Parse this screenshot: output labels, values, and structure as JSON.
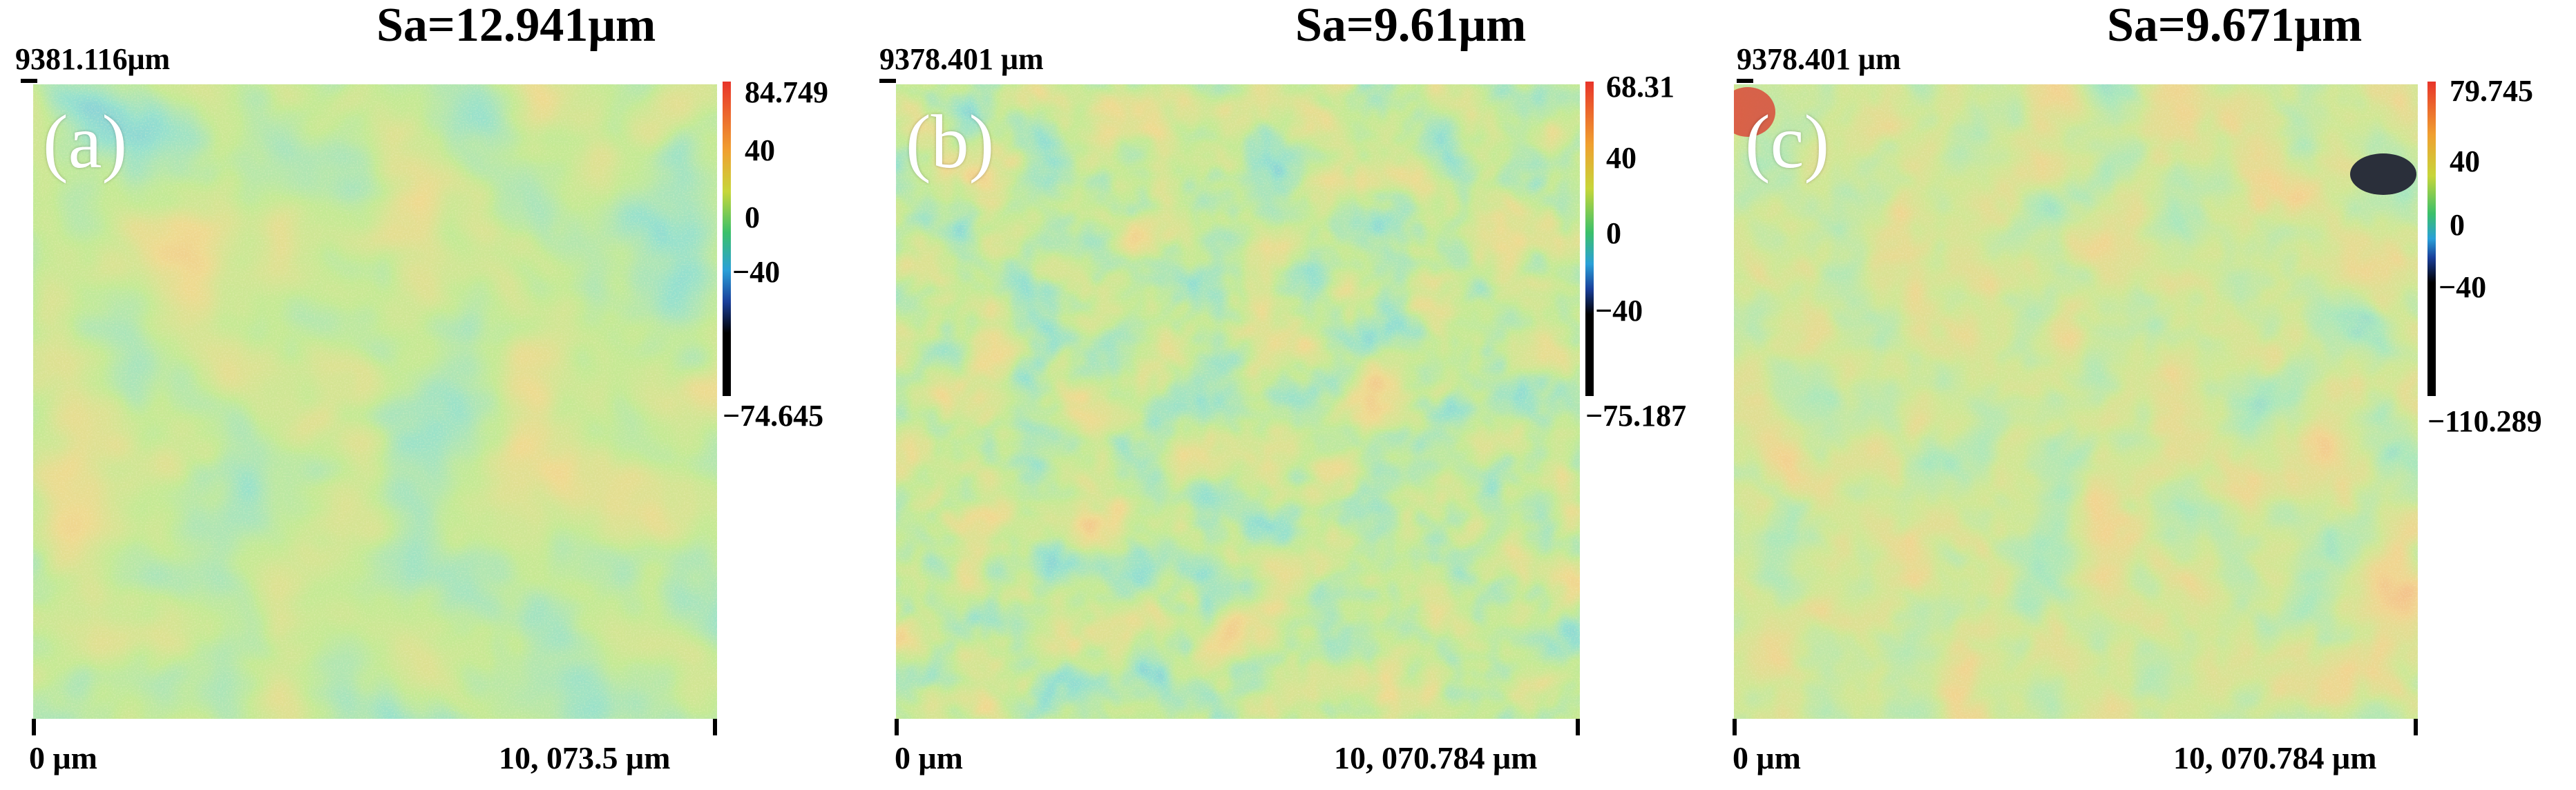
{
  "panels": [
    {
      "label": "(a)",
      "title": "Sa=12.941μm",
      "y_extent": "9381.116μm",
      "x_origin": "0 μm",
      "x_extent": "10, 073.5 μm",
      "colorbar": {
        "max": "84.749",
        "ticks": [
          "40",
          "0",
          "−40"
        ],
        "min": "−74.645"
      }
    },
    {
      "label": "(b)",
      "title": "Sa=9.61μm",
      "y_extent": "9378.401 μm",
      "x_origin": "0 μm",
      "x_extent": "10, 070.784 μm",
      "colorbar": {
        "max": "68.31",
        "ticks": [
          "40",
          "0",
          "−40"
        ],
        "min": "−75.187"
      }
    },
    {
      "label": "(c)",
      "title": "Sa=9.671μm",
      "y_extent": "9378.401 μm",
      "x_origin": "0 μm",
      "x_extent": "10, 070.784 μm",
      "colorbar": {
        "max": "79.745",
        "ticks": [
          "40",
          "0",
          "−40"
        ],
        "min": "−110.289"
      }
    }
  ],
  "colors": {
    "high": "#e8342a",
    "warm": "#e8a050",
    "mid": "#9ad24e",
    "zero": "#3bc0a0",
    "cool": "#2a7ec8",
    "low": "#1a2f8a",
    "min": "#000000"
  }
}
